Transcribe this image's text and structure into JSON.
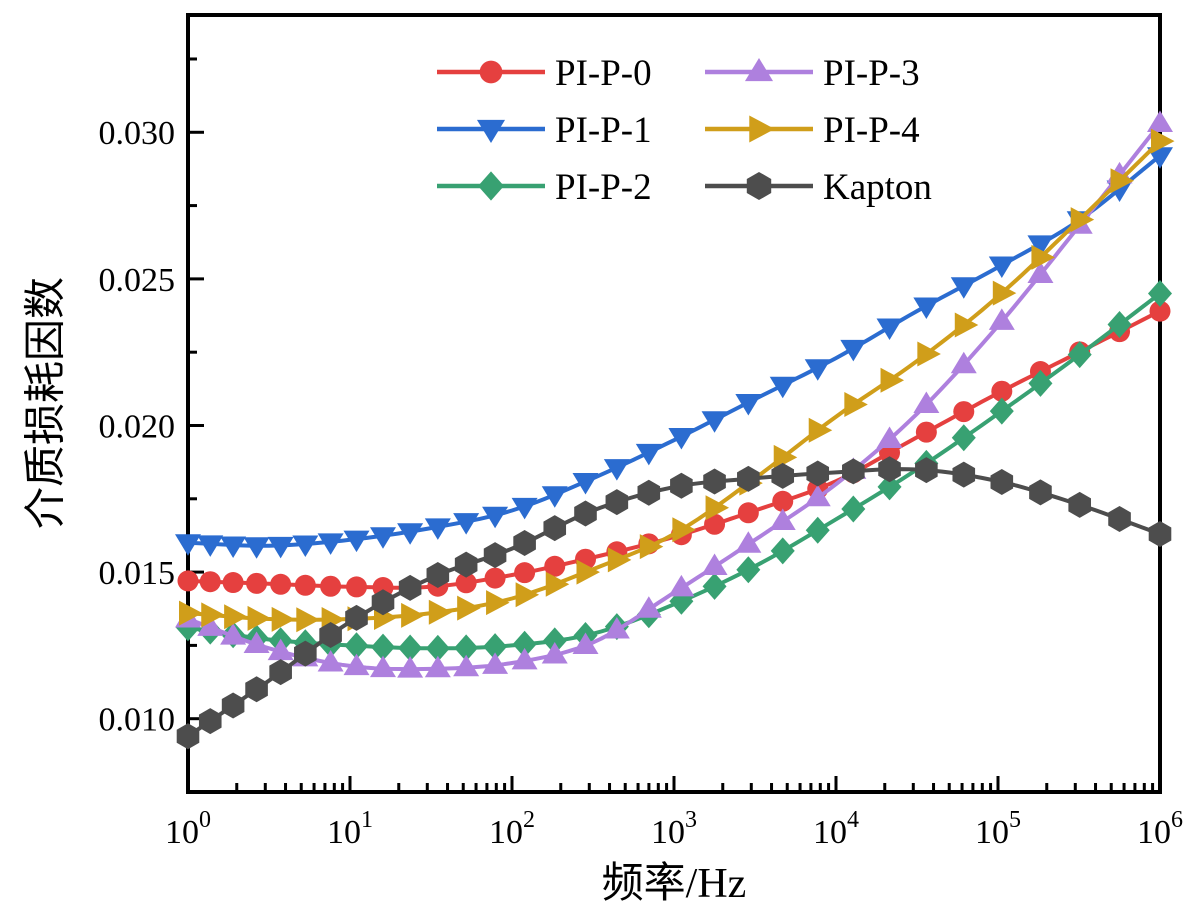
{
  "figure": {
    "background": "#ffffff"
  },
  "chart_data": {
    "type": "line",
    "x_scale": "log",
    "title": "",
    "xlabel": "频率/Hz",
    "ylabel": "介质损耗因数",
    "xlim": [
      1,
      1000000
    ],
    "ylim": [
      0.0075,
      0.034
    ],
    "grid": false,
    "legend_position": "inside-top-center",
    "legend_columns": [
      [
        "PI-P-0",
        "PI-P-1",
        "PI-P-2"
      ],
      [
        "PI-P-3",
        "PI-P-4",
        "Kapton"
      ]
    ],
    "x_ticks": [
      {
        "base": "10",
        "exp": "0"
      },
      {
        "base": "10",
        "exp": "1"
      },
      {
        "base": "10",
        "exp": "2"
      },
      {
        "base": "10",
        "exp": "3"
      },
      {
        "base": "10",
        "exp": "4"
      },
      {
        "base": "10",
        "exp": "5"
      },
      {
        "base": "10",
        "exp": "6"
      }
    ],
    "y_tick_labels": [
      "0.010",
      "0.015",
      "0.020",
      "0.025",
      "0.030"
    ],
    "y_tick_values": [
      0.01,
      0.015,
      0.02,
      0.025,
      0.03
    ],
    "y_minor_tick_values": [
      0.0125,
      0.0175,
      0.0225,
      0.0275,
      0.0325
    ],
    "series": [
      {
        "name": "PI-P-0",
        "color": "#e5403f",
        "marker": "circle",
        "points_log10f_value": [
          [
            0,
            0.0147
          ],
          [
            0.5,
            0.0146
          ],
          [
            1,
            0.0145
          ],
          [
            1.5,
            0.0145
          ],
          [
            2,
            0.0149
          ],
          [
            2.5,
            0.0155
          ],
          [
            3,
            0.0162
          ],
          [
            3.5,
            0.0171
          ],
          [
            4,
            0.0181
          ],
          [
            4.5,
            0.0196
          ],
          [
            5,
            0.0211
          ],
          [
            5.5,
            0.0225
          ],
          [
            6,
            0.0239
          ]
        ]
      },
      {
        "name": "PI-P-1",
        "color": "#2b6cd0",
        "marker": "triangle-down",
        "points_log10f_value": [
          [
            0,
            0.016
          ],
          [
            0.5,
            0.0159
          ],
          [
            1,
            0.0161
          ],
          [
            1.5,
            0.0165
          ],
          [
            2,
            0.0171
          ],
          [
            2.5,
            0.0182
          ],
          [
            3,
            0.0195
          ],
          [
            3.5,
            0.0209
          ],
          [
            4,
            0.0223
          ],
          [
            4.5,
            0.0239
          ],
          [
            5,
            0.0254
          ],
          [
            5.5,
            0.027
          ],
          [
            6,
            0.0292
          ]
        ]
      },
      {
        "name": "PI-P-2",
        "color": "#38a172",
        "marker": "diamond",
        "points_log10f_value": [
          [
            0,
            0.0131
          ],
          [
            0.5,
            0.0127
          ],
          [
            1,
            0.0125
          ],
          [
            1.5,
            0.0124
          ],
          [
            2,
            0.0125
          ],
          [
            2.5,
            0.0129
          ],
          [
            3,
            0.0139
          ],
          [
            3.5,
            0.0152
          ],
          [
            4,
            0.0168
          ],
          [
            4.5,
            0.0185
          ],
          [
            5,
            0.0204
          ],
          [
            5.5,
            0.0224
          ],
          [
            6,
            0.0245
          ]
        ]
      },
      {
        "name": "PI-P-3",
        "color": "#ae80de",
        "marker": "triangle-up",
        "points_log10f_value": [
          [
            0,
            0.0134
          ],
          [
            0.5,
            0.0124
          ],
          [
            1,
            0.0118
          ],
          [
            1.5,
            0.0117
          ],
          [
            2,
            0.0119
          ],
          [
            2.5,
            0.0126
          ],
          [
            3,
            0.0143
          ],
          [
            3.5,
            0.0161
          ],
          [
            4,
            0.018
          ],
          [
            4.5,
            0.0204
          ],
          [
            5,
            0.0234
          ],
          [
            5.5,
            0.0268
          ],
          [
            6,
            0.0303
          ]
        ]
      },
      {
        "name": "PI-P-4",
        "color": "#d09e1a",
        "marker": "triangle-right",
        "points_log10f_value": [
          [
            0,
            0.0136
          ],
          [
            0.5,
            0.0134
          ],
          [
            1,
            0.0134
          ],
          [
            1.5,
            0.0136
          ],
          [
            2,
            0.0141
          ],
          [
            2.5,
            0.0151
          ],
          [
            3,
            0.0163
          ],
          [
            3.5,
            0.0182
          ],
          [
            4,
            0.0203
          ],
          [
            4.5,
            0.0222
          ],
          [
            5,
            0.0244
          ],
          [
            5.5,
            0.027
          ],
          [
            6,
            0.0297
          ]
        ]
      },
      {
        "name": "Kapton",
        "color": "#4d4d4d",
        "marker": "hexagon",
        "points_log10f_value": [
          [
            0,
            0.0094
          ],
          [
            0.5,
            0.0113
          ],
          [
            1,
            0.0133
          ],
          [
            1.5,
            0.0148
          ],
          [
            2,
            0.0158
          ],
          [
            2.5,
            0.0171
          ],
          [
            3,
            0.0179
          ],
          [
            3.5,
            0.0182
          ],
          [
            4,
            0.0184
          ],
          [
            4.5,
            0.0185
          ],
          [
            5,
            0.0181
          ],
          [
            5.5,
            0.0173
          ],
          [
            6,
            0.0163
          ]
        ]
      }
    ]
  }
}
